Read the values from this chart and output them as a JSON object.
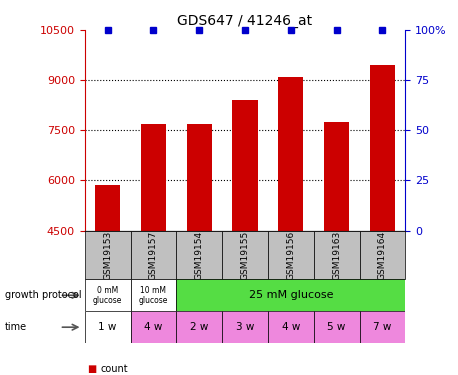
{
  "title": "GDS647 / 41246_at",
  "samples": [
    "GSM19153",
    "GSM19157",
    "GSM19154",
    "GSM19155",
    "GSM19156",
    "GSM19163",
    "GSM19164"
  ],
  "counts": [
    5850,
    7700,
    7700,
    8400,
    9100,
    7750,
    9450
  ],
  "percentile_ranks": [
    100,
    100,
    100,
    100,
    100,
    100,
    100
  ],
  "ylim_left": [
    4500,
    10500
  ],
  "ylim_right": [
    0,
    100
  ],
  "yticks_left": [
    4500,
    6000,
    7500,
    9000,
    10500
  ],
  "yticks_right": [
    0,
    25,
    50,
    75,
    100
  ],
  "time": [
    "1 w",
    "4 w",
    "2 w",
    "3 w",
    "4 w",
    "5 w",
    "7 w"
  ],
  "bar_color": "#cc0000",
  "dot_color": "#0000cc",
  "left_axis_color": "#cc0000",
  "right_axis_color": "#0000cc",
  "grid_color": "#000000",
  "sample_bg_color": "#c0c0c0",
  "growth_green_color": "#55dd44",
  "growth_white_color": "#ffffff",
  "time_pink_color": "#ee88dd",
  "time_white_color": "#ffffff",
  "legend_count_color": "#cc0000",
  "legend_pct_color": "#0000cc",
  "bar_width": 0.55
}
